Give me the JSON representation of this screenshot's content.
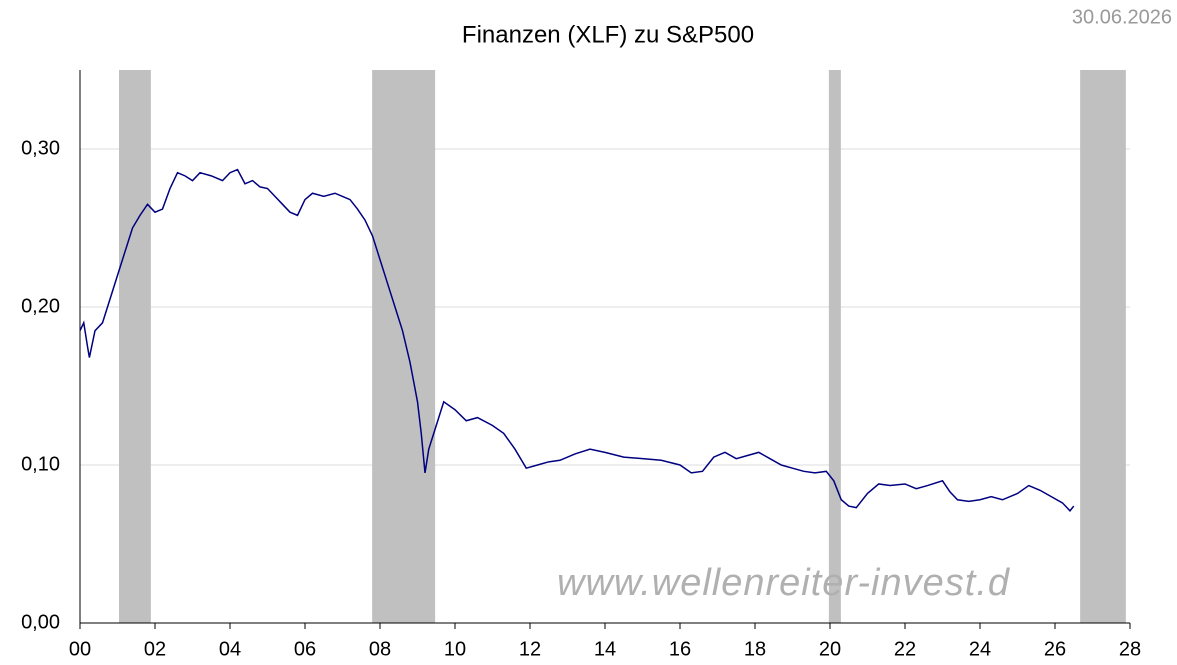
{
  "chart_data": {
    "type": "line",
    "title": "Finanzen (XLF) zu S&P500",
    "date": "30.06.2026",
    "watermark": "www.wellenreiter-invest.d",
    "xlim": [
      0,
      28
    ],
    "ylim": [
      0,
      0.35
    ],
    "xticks": [
      {
        "value": 0,
        "label": "00"
      },
      {
        "value": 2,
        "label": "02"
      },
      {
        "value": 4,
        "label": "04"
      },
      {
        "value": 6,
        "label": "06"
      },
      {
        "value": 8,
        "label": "08"
      },
      10,
      12,
      14,
      16,
      18,
      20,
      22,
      24,
      26,
      28
    ],
    "yticks": [
      {
        "value": 0,
        "label": "0,00"
      },
      {
        "value": 0.1,
        "label": "0,10"
      },
      {
        "value": 0.2,
        "label": "0,20"
      },
      {
        "value": 0.3,
        "label": "0,30"
      }
    ],
    "grid": true,
    "band_color": "#c0c0c0",
    "recession_bands": [
      [
        1.04,
        1.89
      ],
      [
        7.79,
        9.47
      ],
      [
        19.97,
        20.29
      ],
      [
        26.67,
        27.89
      ]
    ],
    "series": [
      {
        "color": "#000080",
        "x": [
          0.0,
          0.1,
          0.2,
          0.25,
          0.4,
          0.6,
          0.8,
          1.0,
          1.2,
          1.4,
          1.6,
          1.8,
          2.0,
          2.2,
          2.4,
          2.6,
          2.8,
          3.0,
          3.2,
          3.5,
          3.8,
          4.0,
          4.2,
          4.4,
          4.6,
          4.8,
          5.0,
          5.2,
          5.4,
          5.6,
          5.8,
          6.0,
          6.2,
          6.5,
          6.8,
          7.0,
          7.2,
          7.4,
          7.6,
          7.8,
          8.0,
          8.2,
          8.4,
          8.6,
          8.8,
          9.0,
          9.1,
          9.2,
          9.3,
          9.5,
          9.7,
          10.0,
          10.3,
          10.6,
          11.0,
          11.3,
          11.6,
          11.9,
          12.2,
          12.5,
          12.8,
          13.2,
          13.6,
          14.0,
          14.5,
          15.0,
          15.5,
          16.0,
          16.3,
          16.6,
          16.9,
          17.2,
          17.5,
          17.8,
          18.1,
          18.4,
          18.7,
          19.0,
          19.3,
          19.6,
          19.9,
          20.1,
          20.3,
          20.5,
          20.7,
          21.0,
          21.3,
          21.6,
          22.0,
          22.3,
          22.6,
          23.0,
          23.2,
          23.4,
          23.7,
          24.0,
          24.3,
          24.6,
          25.0,
          25.3,
          25.6,
          25.9,
          26.2,
          26.4,
          26.5
        ],
        "values": [
          0.185,
          0.19,
          0.175,
          0.168,
          0.185,
          0.19,
          0.205,
          0.22,
          0.235,
          0.25,
          0.258,
          0.265,
          0.26,
          0.262,
          0.275,
          0.285,
          0.283,
          0.28,
          0.285,
          0.283,
          0.28,
          0.285,
          0.287,
          0.278,
          0.28,
          0.276,
          0.275,
          0.27,
          0.265,
          0.26,
          0.258,
          0.268,
          0.272,
          0.27,
          0.272,
          0.27,
          0.268,
          0.262,
          0.255,
          0.245,
          0.23,
          0.215,
          0.2,
          0.185,
          0.165,
          0.14,
          0.12,
          0.095,
          0.11,
          0.125,
          0.14,
          0.135,
          0.128,
          0.13,
          0.125,
          0.12,
          0.11,
          0.098,
          0.1,
          0.102,
          0.103,
          0.107,
          0.11,
          0.108,
          0.105,
          0.104,
          0.103,
          0.1,
          0.095,
          0.096,
          0.105,
          0.108,
          0.104,
          0.106,
          0.108,
          0.104,
          0.1,
          0.098,
          0.096,
          0.095,
          0.096,
          0.09,
          0.078,
          0.074,
          0.073,
          0.082,
          0.088,
          0.087,
          0.088,
          0.085,
          0.087,
          0.09,
          0.083,
          0.078,
          0.077,
          0.078,
          0.08,
          0.078,
          0.082,
          0.087,
          0.084,
          0.08,
          0.076,
          0.071,
          0.074
        ]
      }
    ]
  }
}
